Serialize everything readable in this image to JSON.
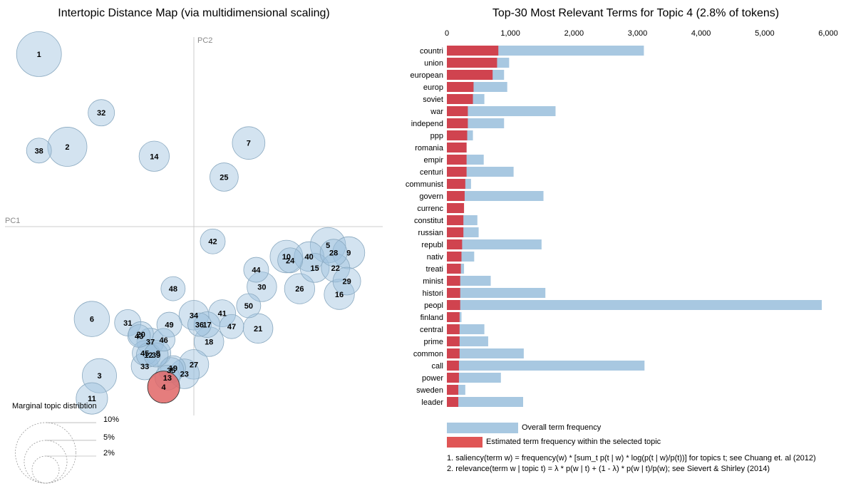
{
  "chart_data": [
    {
      "type": "scatter",
      "title": "Intertopic Distance Map (via multidimensional scaling)",
      "xlabel": "PC1",
      "ylabel": "PC2",
      "xlim": [
        -10,
        10
      ],
      "ylim": [
        -10,
        10
      ],
      "selected_topic": "4",
      "marginal_title": "Marginal topic distribtion",
      "marginal_legend": [
        "2%",
        "5%",
        "10%"
      ],
      "marginal_values": [
        2,
        5,
        10
      ],
      "colors": {
        "topic": "#9ec1dd",
        "selected": "#e06666",
        "axes": "#cccccc"
      },
      "points": [
        {
          "label": "1",
          "x": -8.2,
          "y": 9.1,
          "size": 5.5
        },
        {
          "label": "32",
          "x": -4.9,
          "y": 6.0,
          "size": 1.9
        },
        {
          "label": "38",
          "x": -8.2,
          "y": 4.0,
          "size": 1.7
        },
        {
          "label": "2",
          "x": -6.7,
          "y": 4.2,
          "size": 4.2
        },
        {
          "label": "14",
          "x": -2.1,
          "y": 3.7,
          "size": 2.5
        },
        {
          "label": "7",
          "x": 2.9,
          "y": 4.4,
          "size": 2.9
        },
        {
          "label": "25",
          "x": 1.6,
          "y": 2.6,
          "size": 2.2
        },
        {
          "label": "42",
          "x": 1.0,
          "y": -0.8,
          "size": 1.7
        },
        {
          "label": "5",
          "x": 7.1,
          "y": -1.0,
          "size": 3.4
        },
        {
          "label": "9",
          "x": 8.2,
          "y": -1.4,
          "size": 2.8
        },
        {
          "label": "28",
          "x": 7.4,
          "y": -1.4,
          "size": 2.0
        },
        {
          "label": "10",
          "x": 4.9,
          "y": -1.6,
          "size": 2.9
        },
        {
          "label": "24",
          "x": 5.1,
          "y": -1.8,
          "size": 1.7
        },
        {
          "label": "40",
          "x": 6.1,
          "y": -1.6,
          "size": 2.4
        },
        {
          "label": "15",
          "x": 6.4,
          "y": -2.2,
          "size": 2.3
        },
        {
          "label": "22",
          "x": 7.5,
          "y": -2.2,
          "size": 2.2
        },
        {
          "label": "44",
          "x": 3.3,
          "y": -2.3,
          "size": 1.7
        },
        {
          "label": "29",
          "x": 8.1,
          "y": -2.9,
          "size": 2.1
        },
        {
          "label": "30",
          "x": 3.6,
          "y": -3.2,
          "size": 2.4
        },
        {
          "label": "26",
          "x": 5.6,
          "y": -3.3,
          "size": 2.5
        },
        {
          "label": "16",
          "x": 7.7,
          "y": -3.6,
          "size": 2.5
        },
        {
          "label": "48",
          "x": -1.1,
          "y": -3.3,
          "size": 1.6
        },
        {
          "label": "50",
          "x": 2.9,
          "y": -4.2,
          "size": 1.6
        },
        {
          "label": "41",
          "x": 1.5,
          "y": -4.6,
          "size": 2.0
        },
        {
          "label": "34",
          "x": 0.0,
          "y": -4.7,
          "size": 2.4
        },
        {
          "label": "6",
          "x": -5.4,
          "y": -4.9,
          "size": 3.4
        },
        {
          "label": "31",
          "x": -3.5,
          "y": -5.1,
          "size": 1.9
        },
        {
          "label": "49",
          "x": -1.3,
          "y": -5.2,
          "size": 1.7
        },
        {
          "label": "36",
          "x": 0.3,
          "y": -5.2,
          "size": 1.5
        },
        {
          "label": "17",
          "x": 0.7,
          "y": -5.2,
          "size": 1.8
        },
        {
          "label": "47",
          "x": 2.0,
          "y": -5.3,
          "size": 1.6
        },
        {
          "label": "21",
          "x": 3.4,
          "y": -5.4,
          "size": 2.4
        },
        {
          "label": "20",
          "x": -2.8,
          "y": -5.7,
          "size": 1.7
        },
        {
          "label": "43",
          "x": -2.9,
          "y": -5.8,
          "size": 1.4
        },
        {
          "label": "37",
          "x": -2.3,
          "y": -6.1,
          "size": 2.0
        },
        {
          "label": "46",
          "x": -1.6,
          "y": -6.0,
          "size": 1.4
        },
        {
          "label": "18",
          "x": 0.8,
          "y": -6.1,
          "size": 2.4
        },
        {
          "label": "45",
          "x": -2.6,
          "y": -6.7,
          "size": 1.7
        },
        {
          "label": "8",
          "x": -1.9,
          "y": -6.7,
          "size": 1.8
        },
        {
          "label": "12",
          "x": -2.4,
          "y": -6.8,
          "size": 1.6
        },
        {
          "label": "39",
          "x": -2.0,
          "y": -6.8,
          "size": 1.6
        },
        {
          "label": "33",
          "x": -2.6,
          "y": -7.4,
          "size": 2.0
        },
        {
          "label": "27",
          "x": 0.0,
          "y": -7.3,
          "size": 2.4
        },
        {
          "label": "19",
          "x": -1.1,
          "y": -7.5,
          "size": 1.7
        },
        {
          "label": "35",
          "x": -1.2,
          "y": -7.6,
          "size": 1.7
        },
        {
          "label": "23",
          "x": -0.5,
          "y": -7.8,
          "size": 2.4
        },
        {
          "label": "13",
          "x": -1.4,
          "y": -8.0,
          "size": 1.7
        },
        {
          "label": "3",
          "x": -5.0,
          "y": -7.9,
          "size": 3.2
        },
        {
          "label": "4",
          "x": -1.6,
          "y": -8.5,
          "size": 2.8
        },
        {
          "label": "11",
          "x": -5.4,
          "y": -9.1,
          "size": 2.7
        }
      ]
    },
    {
      "type": "bar",
      "orientation": "horizontal",
      "title": "Top-30 Most Relevant Terms for Topic 4 (2.8% of tokens)",
      "xlim": [
        0,
        6000
      ],
      "ticks": [
        0,
        1000,
        2000,
        3000,
        4000,
        5000,
        6000
      ],
      "tick_labels": [
        "0",
        "1,000",
        "2,000",
        "3,000",
        "4,000",
        "5,000",
        "6,000"
      ],
      "colors": {
        "overall": "#a8c8e1",
        "estimated": "#d0434f"
      },
      "legend": [
        "Overall term frequency",
        "Estimated term frequency within the selected topic"
      ],
      "categories": [
        "countri",
        "union",
        "european",
        "europ",
        "soviet",
        "war",
        "independ",
        "ppp",
        "romania",
        "empir",
        "centuri",
        "communist",
        "govern",
        "currenc",
        "constitut",
        "russian",
        "republ",
        "nativ",
        "treati",
        "minist",
        "histori",
        "peopl",
        "finland",
        "central",
        "prime",
        "common",
        "call",
        "power",
        "sweden",
        "leader"
      ],
      "series": [
        {
          "name": "Overall term frequency",
          "values": [
            3100,
            980,
            900,
            950,
            590,
            1710,
            900,
            410,
            310,
            580,
            1050,
            380,
            1520,
            270,
            480,
            500,
            1490,
            430,
            270,
            690,
            1550,
            5900,
            230,
            590,
            650,
            1210,
            3110,
            850,
            290,
            1200
          ]
        },
        {
          "name": "Estimated term frequency within the selected topic",
          "values": [
            810,
            790,
            720,
            420,
            410,
            330,
            330,
            320,
            310,
            310,
            310,
            290,
            280,
            270,
            260,
            260,
            240,
            230,
            220,
            210,
            210,
            210,
            200,
            200,
            200,
            200,
            190,
            190,
            180,
            180
          ]
        }
      ],
      "notes": [
        "1. saliency(term w) = frequency(w) * [sum_t p(t | w) * log(p(t | w)/p(t))] for topics t; see Chuang et. al (2012)",
        "2. relevance(term w | topic t) = λ * p(w | t) + (1 - λ) * p(w | t)/p(w); see Sievert & Shirley (2014)"
      ]
    }
  ]
}
